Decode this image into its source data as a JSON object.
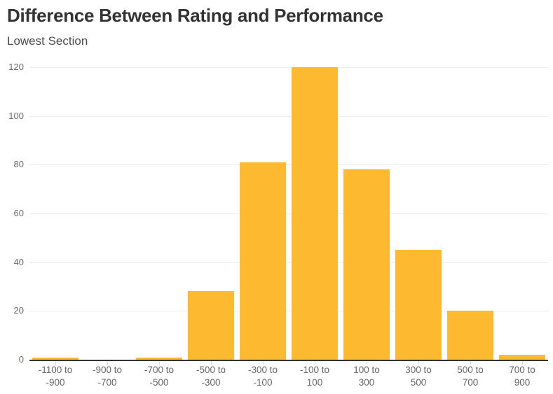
{
  "header": {
    "title": "Difference Between Rating and Performance",
    "subtitle": "Lowest Section"
  },
  "chart_data": {
    "type": "bar",
    "title": "Difference Between Rating and Performance",
    "subtitle": "Lowest Section",
    "categories": [
      "-1100 to -900",
      "-900 to -700",
      "-700 to -500",
      "-500 to -300",
      "-300 to -100",
      "-100 to 100",
      "100 to 300",
      "300 to 500",
      "500 to 700",
      "700 to 900"
    ],
    "values": [
      1,
      0,
      1,
      28,
      81,
      120,
      78,
      45,
      20,
      2
    ],
    "xlabel": "",
    "ylabel": "",
    "ylim": [
      0,
      120
    ],
    "yticks": [
      0,
      20,
      40,
      60,
      80,
      100,
      120
    ],
    "grid": "horizontal",
    "legend": "none",
    "colors": {
      "bar": "#FDB930",
      "axis_line": "#333333",
      "gridline": "#ECECEC",
      "y_tick_label": "#6B6B6B",
      "x_tick_label": "#666666",
      "title": "#333333",
      "subtitle": "#4A4A4A",
      "tick_mark": "#D9D9D9",
      "background": "#FFFFFF"
    }
  }
}
